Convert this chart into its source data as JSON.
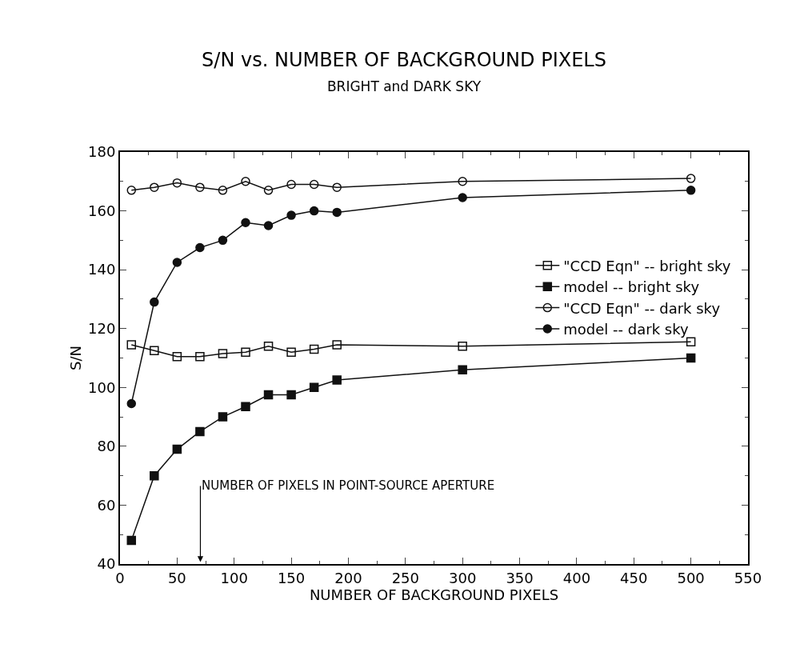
{
  "chart_data": {
    "type": "line",
    "title": "S/N vs. NUMBER OF BACKGROUND PIXELS",
    "subtitle": "BRIGHT and DARK SKY",
    "xlabel": "NUMBER OF BACKGROUND PIXELS",
    "ylabel": "S/N",
    "x": [
      10,
      30,
      50,
      70,
      90,
      110,
      130,
      150,
      170,
      190,
      300,
      500
    ],
    "series": [
      {
        "name": "\"CCD Eqn\" -- bright sky",
        "color": "#111111",
        "marker": "square-open",
        "values": [
          114.5,
          112.5,
          110.5,
          110.5,
          111.5,
          112,
          114,
          112,
          113,
          114.5,
          114,
          115.5
        ]
      },
      {
        "name": "model -- bright sky",
        "color": "#111111",
        "marker": "square",
        "values": [
          48,
          70,
          79,
          85,
          90,
          93.5,
          97.5,
          97.5,
          100,
          102.5,
          106,
          110
        ]
      },
      {
        "name": "\"CCD Eqn\" -- dark sky",
        "color": "#111111",
        "marker": "circle-open",
        "values": [
          167,
          168,
          169.5,
          168,
          167,
          170,
          167,
          169,
          169,
          168,
          170,
          171
        ]
      },
      {
        "name": "model -- dark sky",
        "color": "#111111",
        "marker": "circle",
        "values": [
          94.5,
          129,
          142.5,
          147.5,
          150,
          156,
          155,
          158.5,
          160,
          159.5,
          164.5,
          167
        ]
      }
    ],
    "xlim": [
      0,
      550
    ],
    "xticks": [
      0,
      50,
      100,
      150,
      200,
      250,
      300,
      350,
      400,
      450,
      500,
      550
    ],
    "ylim": [
      40,
      180
    ],
    "yticks": [
      40,
      60,
      80,
      100,
      120,
      140,
      160,
      180
    ],
    "annotations": [
      "NUMBER OF PIXELS IN POINT-SOURCE APERTURE"
    ],
    "legend": "right",
    "line_style": "solid"
  }
}
